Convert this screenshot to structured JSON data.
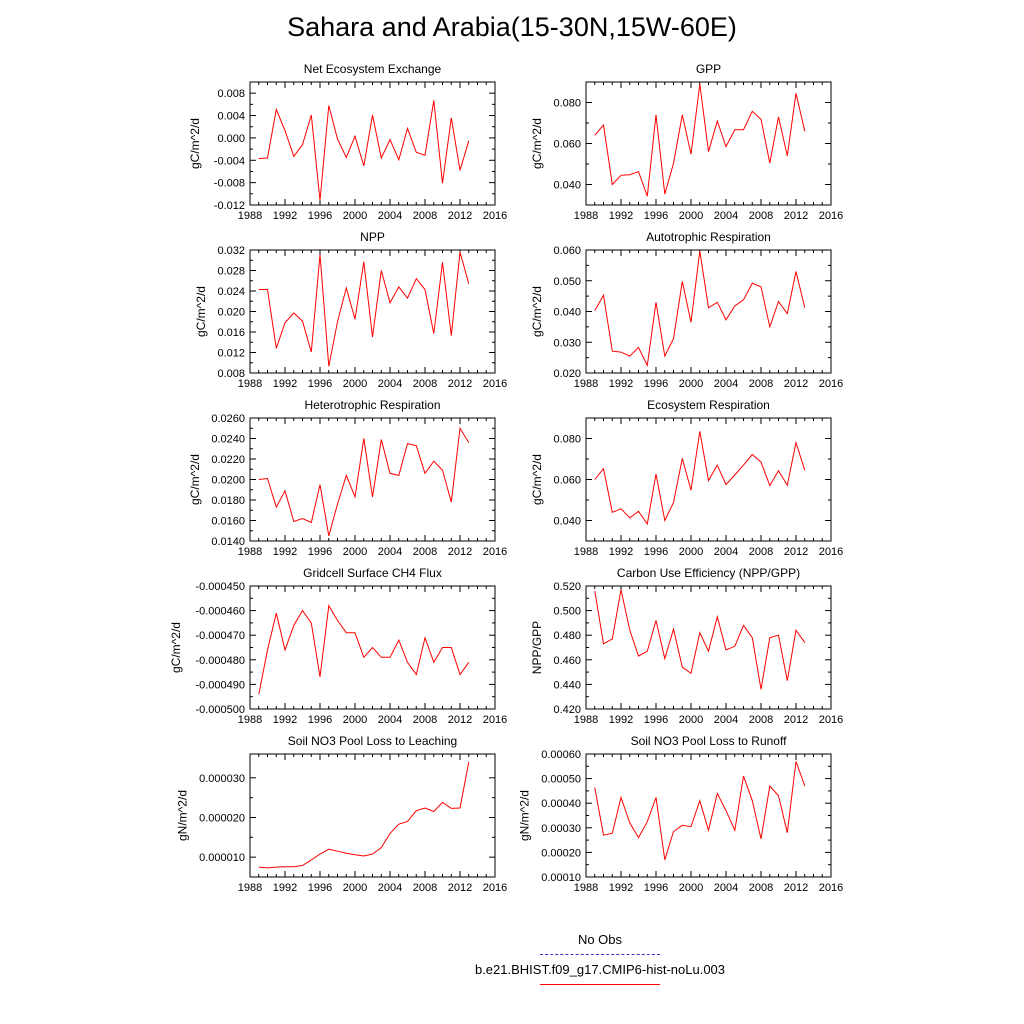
{
  "title": "Sahara and Arabia(15-30N,15W-60E)",
  "legend": {
    "items": [
      {
        "label": "No Obs",
        "color": "#3333cc",
        "style": "dashed"
      },
      {
        "label": "b.e21.BHIST.f09_g17.CMIP6-hist-noLu.003",
        "color": "#ff0000",
        "style": "solid"
      }
    ]
  },
  "chart_data": [
    {
      "type": "line",
      "title": "Net Ecosystem Exchange",
      "ylabel": "gC/m^2/d",
      "xlim": [
        1988,
        2016
      ],
      "xticks": [
        "1988",
        "1992",
        "1996",
        "2000",
        "2004",
        "2008",
        "2012",
        "2016"
      ],
      "ylim": [
        -0.012,
        0.01
      ],
      "yticks": [
        "-0.012",
        "-0.008",
        "-0.004",
        "0.000",
        "0.004",
        "0.008"
      ],
      "ytick_values": [
        -0.012,
        -0.008,
        -0.004,
        0,
        0.004,
        0.008
      ],
      "series": [
        {
          "color": "#ff0000",
          "x": [
            1989,
            1990,
            1991,
            1992,
            1993,
            1994,
            1995,
            1996,
            1997,
            1998,
            1999,
            2000,
            2001,
            2002,
            2003,
            2004,
            2005,
            2006,
            2007,
            2008,
            2009,
            2010,
            2011,
            2012,
            2013
          ],
          "values": [
            -0.0037,
            -0.0036,
            0.0051,
            0.0013,
            -0.0033,
            -0.0012,
            0.0041,
            -0.0112,
            0.0058,
            -0.0002,
            -0.0035,
            0.0003,
            -0.005,
            0.0041,
            -0.0036,
            -0.0003,
            -0.0039,
            0.0017,
            -0.0026,
            -0.0031,
            0.0067,
            -0.0081,
            0.0036,
            -0.0058,
            -0.0005
          ]
        }
      ]
    },
    {
      "type": "line",
      "title": "GPP",
      "ylabel": "gC/m^2/d",
      "xlim": [
        1988,
        2016
      ],
      "xticks": [
        "1988",
        "1992",
        "1996",
        "2000",
        "2004",
        "2008",
        "2012",
        "2016"
      ],
      "ylim": [
        0.03,
        0.09
      ],
      "yticks": [
        "0.040",
        "0.060",
        "0.080"
      ],
      "ytick_values": [
        0.04,
        0.06,
        0.08
      ],
      "series": [
        {
          "color": "#ff0000",
          "x": [
            1989,
            1990,
            1991,
            1992,
            1993,
            1994,
            1995,
            1996,
            1997,
            1998,
            1999,
            2000,
            2001,
            2002,
            2003,
            2004,
            2005,
            2006,
            2007,
            2008,
            2009,
            2010,
            2011,
            2012,
            2013
          ],
          "values": [
            0.064,
            0.069,
            0.04,
            0.0445,
            0.0448,
            0.0463,
            0.0343,
            0.074,
            0.0353,
            0.0503,
            0.074,
            0.0548,
            0.089,
            0.056,
            0.071,
            0.0585,
            0.0667,
            0.0667,
            0.0757,
            0.0718,
            0.0505,
            0.073,
            0.054,
            0.0845,
            0.066
          ]
        }
      ]
    },
    {
      "type": "line",
      "title": "NPP",
      "ylabel": "gC/m^2/d",
      "xlim": [
        1988,
        2016
      ],
      "xticks": [
        "1988",
        "1992",
        "1996",
        "2000",
        "2004",
        "2008",
        "2012",
        "2016"
      ],
      "ylim": [
        0.008,
        0.032
      ],
      "yticks": [
        "0.008",
        "0.012",
        "0.016",
        "0.020",
        "0.024",
        "0.028",
        "0.032"
      ],
      "ytick_values": [
        0.008,
        0.012,
        0.016,
        0.02,
        0.024,
        0.028,
        0.032
      ],
      "series": [
        {
          "color": "#ff0000",
          "x": [
            1989,
            1990,
            1991,
            1992,
            1993,
            1994,
            1995,
            1996,
            1997,
            1998,
            1999,
            2000,
            2001,
            2002,
            2003,
            2004,
            2005,
            2006,
            2007,
            2008,
            2009,
            2010,
            2011,
            2012,
            2013
          ],
          "values": [
            0.0243,
            0.0243,
            0.0128,
            0.0178,
            0.0197,
            0.0181,
            0.0121,
            0.0311,
            0.0093,
            0.018,
            0.0246,
            0.0185,
            0.0297,
            0.015,
            0.028,
            0.0217,
            0.0248,
            0.0226,
            0.0264,
            0.0243,
            0.0157,
            0.0296,
            0.0153,
            0.0316,
            0.0254
          ]
        }
      ]
    },
    {
      "type": "line",
      "title": "Autotrophic Respiration",
      "ylabel": "gC/m^2/d",
      "xlim": [
        1988,
        2016
      ],
      "xticks": [
        "1988",
        "1992",
        "1996",
        "2000",
        "2004",
        "2008",
        "2012",
        "2016"
      ],
      "ylim": [
        0.02,
        0.06
      ],
      "yticks": [
        "0.020",
        "0.030",
        "0.040",
        "0.050",
        "0.060"
      ],
      "ytick_values": [
        0.02,
        0.03,
        0.04,
        0.05,
        0.06
      ],
      "series": [
        {
          "color": "#ff0000",
          "x": [
            1989,
            1990,
            1991,
            1992,
            1993,
            1994,
            1995,
            1996,
            1997,
            1998,
            1999,
            2000,
            2001,
            2002,
            2003,
            2004,
            2005,
            2006,
            2007,
            2008,
            2009,
            2010,
            2011,
            2012,
            2013
          ],
          "values": [
            0.0403,
            0.0453,
            0.0271,
            0.0268,
            0.0255,
            0.0283,
            0.0225,
            0.043,
            0.0255,
            0.0312,
            0.0498,
            0.0365,
            0.0597,
            0.0412,
            0.043,
            0.0373,
            0.0418,
            0.0438,
            0.0492,
            0.048,
            0.035,
            0.0433,
            0.0393,
            0.053,
            0.0412
          ]
        }
      ]
    },
    {
      "type": "line",
      "title": "Heterotrophic Respiration",
      "ylabel": "gC/m^2/d",
      "xlim": [
        1988,
        2016
      ],
      "xticks": [
        "1988",
        "1992",
        "1996",
        "2000",
        "2004",
        "2008",
        "2012",
        "2016"
      ],
      "ylim": [
        0.014,
        0.026
      ],
      "yticks": [
        "0.0140",
        "0.0160",
        "0.0180",
        "0.0200",
        "0.0220",
        "0.0240",
        "0.0260"
      ],
      "ytick_values": [
        0.014,
        0.016,
        0.018,
        0.02,
        0.022,
        0.024,
        0.026
      ],
      "series": [
        {
          "color": "#ff0000",
          "x": [
            1989,
            1990,
            1991,
            1992,
            1993,
            1994,
            1995,
            1996,
            1997,
            1998,
            1999,
            2000,
            2001,
            2002,
            2003,
            2004,
            2005,
            2006,
            2007,
            2008,
            2009,
            2010,
            2011,
            2012,
            2013
          ],
          "values": [
            0.02,
            0.0201,
            0.0173,
            0.0189,
            0.0159,
            0.0162,
            0.0158,
            0.0195,
            0.0145,
            0.0176,
            0.0204,
            0.0183,
            0.024,
            0.0183,
            0.0239,
            0.0206,
            0.0204,
            0.0235,
            0.0233,
            0.0206,
            0.0218,
            0.0209,
            0.0178,
            0.025,
            0.0236
          ]
        }
      ]
    },
    {
      "type": "line",
      "title": "Ecosystem Respiration",
      "ylabel": "gC/m^2/d",
      "xlim": [
        1988,
        2016
      ],
      "xticks": [
        "1988",
        "1992",
        "1996",
        "2000",
        "2004",
        "2008",
        "2012",
        "2016"
      ],
      "ylim": [
        0.03,
        0.09
      ],
      "yticks": [
        "0.040",
        "0.060",
        "0.080"
      ],
      "ytick_values": [
        0.04,
        0.06,
        0.08
      ],
      "series": [
        {
          "color": "#ff0000",
          "x": [
            1989,
            1990,
            1991,
            1992,
            1993,
            1994,
            1995,
            1996,
            1997,
            1998,
            1999,
            2000,
            2001,
            2002,
            2003,
            2004,
            2005,
            2006,
            2007,
            2008,
            2009,
            2010,
            2011,
            2012,
            2013
          ],
          "values": [
            0.06,
            0.0653,
            0.044,
            0.0457,
            0.0413,
            0.0445,
            0.0383,
            0.0627,
            0.04,
            0.0488,
            0.0703,
            0.0548,
            0.0835,
            0.0595,
            0.067,
            0.0575,
            0.0622,
            0.067,
            0.0722,
            0.0685,
            0.057,
            0.0643,
            0.0572,
            0.078,
            0.0645
          ]
        }
      ]
    },
    {
      "type": "line",
      "title": "Gridcell Surface CH4 Flux",
      "ylabel": "gC/m^2/d",
      "xlim": [
        1988,
        2016
      ],
      "xticks": [
        "1988",
        "1992",
        "1996",
        "2000",
        "2004",
        "2008",
        "2012",
        "2016"
      ],
      "ylim": [
        -0.0005,
        -0.00045
      ],
      "yticks": [
        "-0.000500",
        "-0.000490",
        "-0.000480",
        "-0.000470",
        "-0.000460",
        "-0.000450"
      ],
      "ytick_values": [
        -0.0005,
        -0.00049,
        -0.00048,
        -0.00047,
        -0.00046,
        -0.00045
      ],
      "series": [
        {
          "color": "#ff0000",
          "x": [
            1989,
            1990,
            1991,
            1992,
            1993,
            1994,
            1995,
            1996,
            1997,
            1998,
            1999,
            2000,
            2001,
            2002,
            2003,
            2004,
            2005,
            2006,
            2007,
            2008,
            2009,
            2010,
            2011,
            2012,
            2013
          ],
          "values": [
            -0.000494,
            -0.000476,
            -0.000461,
            -0.000476,
            -0.000466,
            -0.00046,
            -0.000465,
            -0.000487,
            -0.000458,
            -0.000464,
            -0.000469,
            -0.000469,
            -0.000479,
            -0.000475,
            -0.000479,
            -0.000479,
            -0.000472,
            -0.000481,
            -0.000486,
            -0.000471,
            -0.000481,
            -0.000475,
            -0.000475,
            -0.000486,
            -0.000481
          ]
        }
      ]
    },
    {
      "type": "line",
      "title": "Carbon Use Efficiency (NPP/GPP)",
      "ylabel": "NPP/GPP",
      "xlim": [
        1988,
        2016
      ],
      "xticks": [
        "1988",
        "1992",
        "1996",
        "2000",
        "2004",
        "2008",
        "2012",
        "2016"
      ],
      "ylim": [
        0.42,
        0.52
      ],
      "yticks": [
        "0.420",
        "0.440",
        "0.460",
        "0.480",
        "0.500",
        "0.520"
      ],
      "ytick_values": [
        0.42,
        0.44,
        0.46,
        0.48,
        0.5,
        0.52
      ],
      "series": [
        {
          "color": "#ff0000",
          "x": [
            1989,
            1990,
            1991,
            1992,
            1993,
            1994,
            1995,
            1996,
            1997,
            1998,
            1999,
            2000,
            2001,
            2002,
            2003,
            2004,
            2005,
            2006,
            2007,
            2008,
            2009,
            2010,
            2011,
            2012,
            2013
          ],
          "values": [
            0.516,
            0.473,
            0.477,
            0.517,
            0.484,
            0.463,
            0.467,
            0.492,
            0.461,
            0.485,
            0.454,
            0.449,
            0.482,
            0.467,
            0.495,
            0.468,
            0.471,
            0.488,
            0.478,
            0.436,
            0.478,
            0.48,
            0.443,
            0.484,
            0.474
          ]
        }
      ]
    },
    {
      "type": "line",
      "title": "Soil NO3 Pool Loss to Leaching",
      "ylabel": "gN/m^2/d",
      "xlim": [
        1988,
        2016
      ],
      "xticks": [
        "1988",
        "1992",
        "1996",
        "2000",
        "2004",
        "2008",
        "2012",
        "2016"
      ],
      "ylim": [
        5e-06,
        3.6e-05
      ],
      "yticks": [
        "0.000010",
        "0.000020",
        "0.000030"
      ],
      "ytick_values": [
        1e-05,
        2e-05,
        3e-05
      ],
      "series": [
        {
          "color": "#ff0000",
          "x": [
            1989,
            1990,
            1991,
            1992,
            1993,
            1994,
            1995,
            1996,
            1997,
            1998,
            1999,
            2000,
            2001,
            2002,
            2003,
            2004,
            2005,
            2006,
            2007,
            2008,
            2009,
            2010,
            2011,
            2012,
            2013
          ],
          "values": [
            7.5e-06,
            7.3e-06,
            7.5e-06,
            7.6e-06,
            7.6e-06,
            7.9e-06,
            9.3e-06,
            1.08e-05,
            1.2e-05,
            1.15e-05,
            1.1e-05,
            1.06e-05,
            1.03e-05,
            1.08e-05,
            1.24e-05,
            1.6e-05,
            1.83e-05,
            1.9e-05,
            2.17e-05,
            2.24e-05,
            2.15e-05,
            2.38e-05,
            2.23e-05,
            2.24e-05,
            3.4e-05
          ]
        }
      ]
    },
    {
      "type": "line",
      "title": "Soil NO3 Pool Loss to Runoff",
      "ylabel": "gN/m^2/d",
      "xlim": [
        1988,
        2016
      ],
      "xticks": [
        "1988",
        "1992",
        "1996",
        "2000",
        "2004",
        "2008",
        "2012",
        "2016"
      ],
      "ylim": [
        0.0001,
        0.0006
      ],
      "yticks": [
        "0.00010",
        "0.00020",
        "0.00030",
        "0.00040",
        "0.00050",
        "0.00060"
      ],
      "ytick_values": [
        0.0001,
        0.0002,
        0.0003,
        0.0004,
        0.0005,
        0.0006
      ],
      "series": [
        {
          "color": "#ff0000",
          "x": [
            1989,
            1990,
            1991,
            1992,
            1993,
            1994,
            1995,
            1996,
            1997,
            1998,
            1999,
            2000,
            2001,
            2002,
            2003,
            2004,
            2005,
            2006,
            2007,
            2008,
            2009,
            2010,
            2011,
            2012,
            2013
          ],
          "values": [
            0.000463,
            0.00027,
            0.000278,
            0.000423,
            0.00032,
            0.00026,
            0.000325,
            0.000423,
            0.00017,
            0.000285,
            0.00031,
            0.000305,
            0.00041,
            0.00029,
            0.00044,
            0.00037,
            0.00029,
            0.00051,
            0.00041,
            0.000255,
            0.00047,
            0.00043,
            0.00028,
            0.00057,
            0.00047
          ]
        }
      ]
    }
  ]
}
